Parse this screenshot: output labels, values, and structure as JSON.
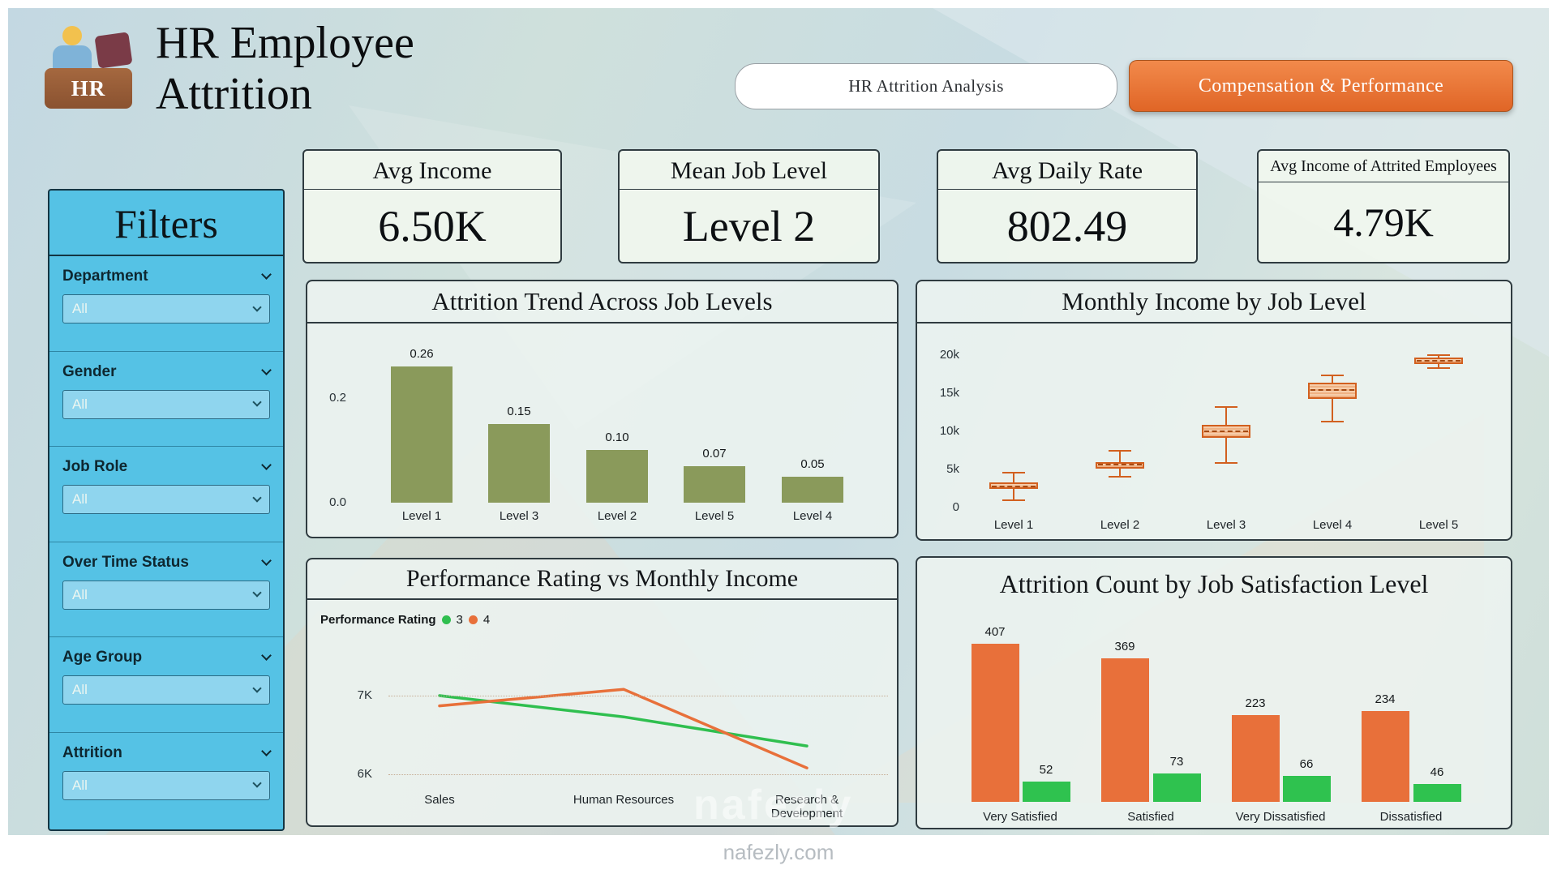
{
  "page": {
    "title": "HR Employee Attrition",
    "logo_text": "HR",
    "watermark_large": "nafezly",
    "watermark_small": "nafezly.com"
  },
  "nav": {
    "tabs": [
      {
        "label": "HR Attrition Analysis",
        "active": true
      },
      {
        "label": "Compensation & Performance",
        "active": false
      }
    ]
  },
  "kpis": [
    {
      "label": "Avg Income",
      "value": "6.50K"
    },
    {
      "label": "Mean Job Level",
      "value": "Level 2"
    },
    {
      "label": "Avg Daily Rate",
      "value": "802.49"
    },
    {
      "label": "Avg Income of Attrited Employees",
      "value": "4.79K"
    }
  ],
  "filters": {
    "title": "Filters",
    "items": [
      {
        "label": "Department",
        "value": "All"
      },
      {
        "label": "Gender",
        "value": "All"
      },
      {
        "label": "Job Role",
        "value": "All"
      },
      {
        "label": "Over Time Status",
        "value": "All"
      },
      {
        "label": "Age Group",
        "value": "All"
      },
      {
        "label": "Attrition",
        "value": "All"
      }
    ]
  },
  "colors": {
    "olive": "#8a9a5b",
    "orange": "#e8703a",
    "green": "#2fc24f",
    "box_orange": "#ed7d31",
    "sidebar_blue": "#55c2e5"
  },
  "chart_data": [
    {
      "id": "attrition-trend",
      "type": "bar",
      "title": "Attrition Trend Across Job Levels",
      "categories": [
        "Level 1",
        "Level 3",
        "Level 2",
        "Level 5",
        "Level 4"
      ],
      "values": [
        0.26,
        0.15,
        0.1,
        0.07,
        0.05
      ],
      "labels": [
        "0.26",
        "0.15",
        "0.10",
        "0.07",
        "0.05"
      ],
      "bar_color": "#8a9a5b",
      "yticks": [
        {
          "label": "0.2",
          "value": 0.2
        },
        {
          "label": "0.0",
          "value": 0
        }
      ],
      "ylim": [
        0,
        0.28
      ],
      "grid": false
    },
    {
      "id": "income-by-job-level",
      "type": "boxplot",
      "title": "Monthly Income by Job Level",
      "unit": "k",
      "box_color": "#ed7d31",
      "series": [
        {
          "category": "Level 1",
          "low": 1.0,
          "q1": 2.4,
          "median": 2.8,
          "q3": 3.3,
          "high": 4.6
        },
        {
          "category": "Level 2",
          "low": 4.0,
          "q1": 5.2,
          "median": 5.6,
          "q3": 6.0,
          "high": 7.4
        },
        {
          "category": "Level 3",
          "low": 5.8,
          "q1": 9.2,
          "median": 10.0,
          "q3": 10.9,
          "high": 13.2
        },
        {
          "category": "Level 4",
          "low": 11.3,
          "q1": 14.3,
          "median": 15.4,
          "q3": 16.4,
          "high": 17.3
        },
        {
          "category": "Level 5",
          "low": 18.3,
          "q1": 18.9,
          "median": 19.3,
          "q3": 19.7,
          "high": 20.0
        }
      ],
      "yticks": [
        {
          "label": "20k",
          "value": 20
        },
        {
          "label": "15k",
          "value": 15
        },
        {
          "label": "10k",
          "value": 10
        },
        {
          "label": "5k",
          "value": 5
        },
        {
          "label": "0",
          "value": 0
        }
      ],
      "ylim": [
        0,
        21.5
      ],
      "grid": false
    },
    {
      "id": "performance-vs-income",
      "type": "line",
      "title": "Performance Rating vs Monthly Income",
      "legend_title": "Performance Rating",
      "legend_position": "top-left",
      "unit": "K",
      "categories": [
        "Sales",
        "Human Resources",
        "Research & Development"
      ],
      "series": [
        {
          "name": "3",
          "color": "#2fbf4f",
          "values": [
            7.0,
            6.73,
            6.36
          ]
        },
        {
          "name": "4",
          "color": "#e8703a",
          "values": [
            6.87,
            7.08,
            6.08
          ]
        }
      ],
      "yticks": [
        {
          "label": "7K",
          "value": 7
        },
        {
          "label": "6K",
          "value": 6
        }
      ],
      "grid": true
    },
    {
      "id": "attrition-count-by-satisfaction",
      "type": "bar",
      "title": "Attrition Count by Job Satisfaction Level",
      "categories": [
        "Very Satisfied",
        "Satisfied",
        "Very Dissatisfied",
        "Dissatisfied"
      ],
      "series": [
        {
          "name": "",
          "color": "#e8703a",
          "values": [
            407,
            369,
            223,
            234
          ]
        },
        {
          "name": "",
          "color": "#2fc24f",
          "values": [
            52,
            73,
            66,
            46
          ]
        }
      ],
      "ylim": [
        0,
        430
      ],
      "grid": false
    }
  ]
}
